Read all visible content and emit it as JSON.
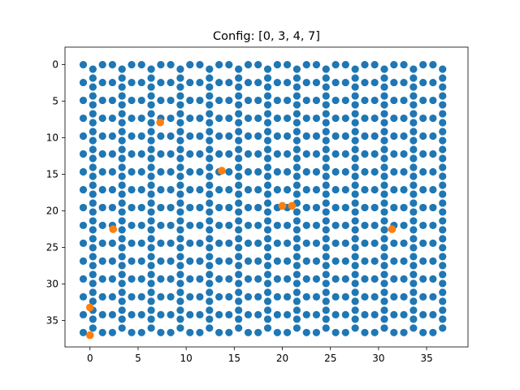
{
  "chart_data": {
    "type": "scatter",
    "title": "Config: [0, 3, 4, 7]",
    "xlabel": "",
    "ylabel": "",
    "xlim": [
      -2.6,
      39.3
    ],
    "ylim": [
      38.6,
      -2.4
    ],
    "y_inverted": true,
    "grid": false,
    "x_ticks": [
      0,
      5,
      10,
      15,
      20,
      25,
      30,
      35
    ],
    "y_ticks": [
      0,
      5,
      10,
      15,
      20,
      25,
      30,
      35
    ],
    "lattice": {
      "description": "hexagonal (honeycomb) lattice of sites",
      "x_range": [
        -0.7,
        37.1
      ],
      "y_range": [
        0,
        36.6
      ]
    },
    "series": [
      {
        "color": "#1f77b4",
        "points": "all lattice sites (honeycomb grid)"
      },
      {
        "color": "#ff7f0e",
        "x": [
          7.3,
          13.7,
          20.0,
          21.0,
          2.4,
          31.4,
          0.0,
          0.0
        ],
        "y": [
          7.9,
          14.5,
          19.3,
          19.3,
          22.5,
          22.5,
          33.2,
          37.0
        ]
      }
    ]
  }
}
